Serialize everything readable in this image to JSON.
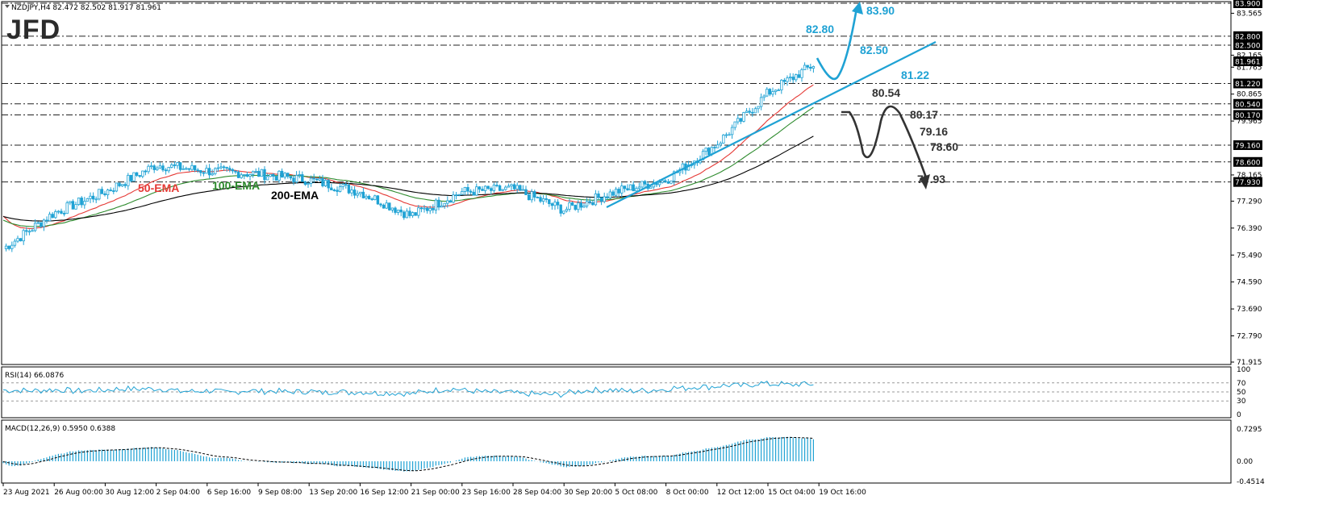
{
  "header": {
    "symbol_info": "NZDJPY,H4  82.472 82.502 81.917 81.961",
    "logo": "JFD"
  },
  "colors": {
    "candle": "#1fa2d4",
    "ema50": "#e53935",
    "ema100": "#2e8b2e",
    "ema200": "#000000",
    "up_arrow": "#1fa2d4",
    "down_arrow": "#333333",
    "tag_bg": "#000000"
  },
  "price_axis": {
    "ticks": [
      "83.565",
      "82.165",
      "81.765",
      "80.865",
      "79.965",
      "78.165",
      "77.290",
      "76.390",
      "75.490",
      "74.590",
      "73.690",
      "72.790",
      "71.915"
    ],
    "tagged": [
      "83.900",
      "82.800",
      "82.500",
      "81.961",
      "81.220",
      "80.540",
      "80.170",
      "79.160",
      "78.600",
      "77.930"
    ]
  },
  "date_axis": {
    "labels": [
      "23 Aug 2021",
      "26 Aug 00:00",
      "30 Aug 12:00",
      "2 Sep 04:00",
      "6 Sep 16:00",
      "9 Sep 08:00",
      "13 Sep 20:00",
      "16 Sep 12:00",
      "21 Sep 00:00",
      "23 Sep 16:00",
      "28 Sep 04:00",
      "30 Sep 20:00",
      "5 Oct 08:00",
      "8 Oct 00:00",
      "12 Oct 12:00",
      "15 Oct 04:00",
      "19 Oct 16:00"
    ]
  },
  "ema_labels": {
    "ema50": "50-EMA",
    "ema100": "100-EMA",
    "ema200": "200-EMA"
  },
  "annotations": {
    "up_target": "83.90",
    "res1": "82.80",
    "res2": "82.50",
    "sup1": "81.22",
    "sup2": "80.54",
    "sup3": "80.17",
    "sup4": "79.16",
    "sup5": "78.60",
    "sup6": "77.93"
  },
  "rsi": {
    "title": "RSI(14) 66.0876",
    "ticks": [
      "100",
      "70",
      "50",
      "30",
      "0"
    ]
  },
  "macd": {
    "title": "MACD(12,26,9) 0.5950 0.6388",
    "ticks": [
      "0.7295",
      "0.00",
      "-0.4514"
    ]
  },
  "chart_data": {
    "type": "candlestick",
    "instrument": "NZDJPY",
    "timeframe": "H4",
    "x_range": [
      "23 Aug 2021",
      "19 Oct 16:00"
    ],
    "ylim": [
      71.915,
      83.9
    ],
    "approx_close_path": [
      [
        "23 Aug 2021",
        75.7
      ],
      [
        "26 Aug 00:00",
        76.9
      ],
      [
        "30 Aug 12:00",
        77.6
      ],
      [
        "2 Sep 04:00",
        78.5
      ],
      [
        "6 Sep 16:00",
        78.3
      ],
      [
        "9 Sep 08:00",
        78.2
      ],
      [
        "13 Sep 20:00",
        78.0
      ],
      [
        "16 Sep 12:00",
        77.6
      ],
      [
        "21 Sep 00:00",
        76.8
      ],
      [
        "23 Sep 16:00",
        77.6
      ],
      [
        "28 Sep 04:00",
        77.7
      ],
      [
        "30 Sep 20:00",
        77.0
      ],
      [
        "5 Oct 08:00",
        77.6
      ],
      [
        "8 Oct 00:00",
        78.0
      ],
      [
        "12 Oct 12:00",
        79.2
      ],
      [
        "15 Oct 04:00",
        80.9
      ],
      [
        "19 Oct 16:00",
        81.96
      ]
    ],
    "trendline": {
      "from": [
        "5 Oct 08:00",
        76.9
      ],
      "to": [
        "19 Oct 16:00",
        82.5
      ]
    },
    "horizontal_levels": [
      83.9,
      82.8,
      82.5,
      81.22,
      80.54,
      80.17,
      79.16,
      78.6,
      77.93
    ],
    "rsi_last": 66.0876,
    "macd_last": [
      0.595,
      0.6388
    ]
  }
}
